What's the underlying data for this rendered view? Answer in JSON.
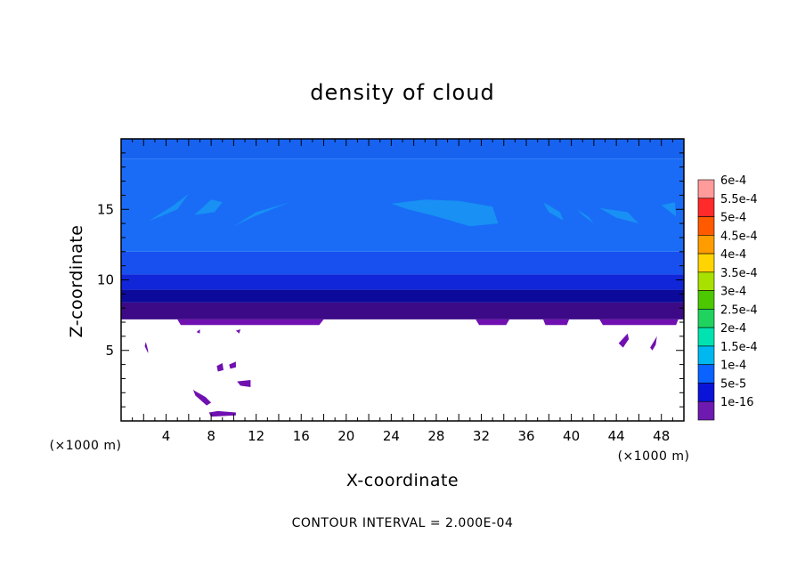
{
  "chart_data": {
    "type": "heatmap",
    "title": "density of cloud",
    "xlabel": "X-coordinate",
    "ylabel": "Z-coordinate",
    "x_unit": "(×1000 m)",
    "z_unit": "(×1000 m)",
    "xlim": [
      0,
      50
    ],
    "ylim": [
      0,
      20
    ],
    "x_ticks": [
      4,
      8,
      12,
      16,
      20,
      24,
      28,
      32,
      36,
      40,
      44,
      48
    ],
    "y_ticks": [
      5,
      10,
      15
    ],
    "footer": "CONTOUR INTERVAL = 2.000E-04",
    "colorbar": {
      "labels": [
        "6e-4",
        "5.5e-4",
        "5e-4",
        "4.5e-4",
        "4e-4",
        "3.5e-4",
        "3e-4",
        "2.5e-4",
        "2e-4",
        "1.5e-4",
        "1e-4",
        "5e-5",
        "1e-16"
      ],
      "colors": [
        "#ff9b9b",
        "#ff2a2a",
        "#ff5a00",
        "#ff9c00",
        "#ffd400",
        "#a8e000",
        "#4cc800",
        "#1fd35e",
        "#00e3b0",
        "#00b8f0",
        "#0a63ff",
        "#0a14d8",
        "#6e1ab0"
      ]
    },
    "bands": [
      {
        "z_bottom": 7.2,
        "z_top": 8.4,
        "color": "#3c0a86"
      },
      {
        "z_bottom": 8.4,
        "z_top": 9.3,
        "color": "#0c0a9a"
      },
      {
        "z_bottom": 9.3,
        "z_top": 10.4,
        "color": "#1026d8"
      },
      {
        "z_bottom": 10.4,
        "z_top": 12.0,
        "color": "#1750ee"
      },
      {
        "z_bottom": 12.0,
        "z_top": 18.6,
        "color": "#1a6cf6"
      },
      {
        "z_bottom": 18.6,
        "z_top": 20.0,
        "color": "#1763ef"
      }
    ],
    "regions": [
      {
        "level": "1.5e-4",
        "color": "#1890f4",
        "polygon": [
          [
            2.5,
            14.2
          ],
          [
            4.5,
            15.2
          ],
          [
            6.0,
            16.1
          ],
          [
            5.0,
            15.0
          ],
          [
            3.5,
            14.5
          ]
        ]
      },
      {
        "level": "1.5e-4",
        "color": "#1890f4",
        "polygon": [
          [
            6.5,
            14.6
          ],
          [
            8.0,
            15.7
          ],
          [
            9.0,
            15.5
          ],
          [
            8.3,
            14.8
          ]
        ]
      },
      {
        "level": "1.5e-4",
        "color": "#1890f4",
        "polygon": [
          [
            10.0,
            13.8
          ],
          [
            12.0,
            14.8
          ],
          [
            15.0,
            15.5
          ],
          [
            14.0,
            15.2
          ],
          [
            11.8,
            14.5
          ]
        ]
      },
      {
        "level": "1.5e-4",
        "color": "#1890f4",
        "polygon": [
          [
            24.0,
            15.4
          ],
          [
            27.0,
            15.7
          ],
          [
            30.0,
            15.6
          ],
          [
            33.0,
            15.2
          ],
          [
            33.5,
            14.0
          ],
          [
            31.0,
            13.8
          ],
          [
            28.0,
            14.5
          ],
          [
            25.5,
            15.0
          ]
        ]
      },
      {
        "level": "1.5e-4",
        "color": "#1890f4",
        "polygon": [
          [
            37.5,
            15.5
          ],
          [
            39.0,
            14.8
          ],
          [
            39.3,
            14.2
          ],
          [
            38.0,
            14.8
          ]
        ]
      },
      {
        "level": "1.5e-4",
        "color": "#1890f4",
        "polygon": [
          [
            40.5,
            15.0
          ],
          [
            41.5,
            14.5
          ],
          [
            42.0,
            14.0
          ],
          [
            41.0,
            14.6
          ]
        ]
      },
      {
        "level": "1.5e-4",
        "color": "#1890f4",
        "polygon": [
          [
            42.5,
            15.1
          ],
          [
            45.0,
            14.8
          ],
          [
            46.0,
            14.0
          ],
          [
            44.0,
            14.4
          ]
        ]
      },
      {
        "level": "1.5e-4",
        "color": "#1890f4",
        "polygon": [
          [
            48.0,
            15.3
          ],
          [
            49.3,
            14.5
          ],
          [
            49.2,
            15.5
          ]
        ]
      },
      {
        "level": "1e-16",
        "color": "#7010b0",
        "polygon": [
          [
            5.0,
            7.2
          ],
          [
            18.0,
            7.2
          ],
          [
            17.6,
            6.8
          ],
          [
            5.3,
            6.8
          ]
        ]
      },
      {
        "level": "1e-16",
        "color": "#7010b0",
        "polygon": [
          [
            31.5,
            7.2
          ],
          [
            34.5,
            7.2
          ],
          [
            34.2,
            6.8
          ],
          [
            31.8,
            6.8
          ]
        ]
      },
      {
        "level": "1e-16",
        "color": "#7010b0",
        "polygon": [
          [
            37.5,
            7.2
          ],
          [
            39.8,
            7.2
          ],
          [
            39.6,
            6.8
          ],
          [
            37.7,
            6.8
          ]
        ]
      },
      {
        "level": "1e-16",
        "color": "#7010b0",
        "polygon": [
          [
            42.5,
            7.2
          ],
          [
            49.5,
            7.2
          ],
          [
            49.3,
            6.8
          ],
          [
            42.8,
            6.8
          ]
        ]
      },
      {
        "level": "1e-16",
        "color": "#7010b0",
        "polygon": [
          [
            2.2,
            5.6
          ],
          [
            2.4,
            5.0
          ],
          [
            2.4,
            4.8
          ],
          [
            2.1,
            5.3
          ]
        ]
      },
      {
        "level": "1e-16",
        "color": "#7010b0",
        "polygon": [
          [
            8.5,
            3.9
          ],
          [
            9.0,
            4.1
          ],
          [
            9.1,
            3.6
          ],
          [
            8.6,
            3.5
          ]
        ]
      },
      {
        "level": "1e-16",
        "color": "#7010b0",
        "polygon": [
          [
            9.6,
            4.0
          ],
          [
            10.2,
            4.2
          ],
          [
            10.2,
            3.8
          ],
          [
            9.7,
            3.7
          ]
        ]
      },
      {
        "level": "1e-16",
        "color": "#7010b0",
        "polygon": [
          [
            10.3,
            2.8
          ],
          [
            11.5,
            2.9
          ],
          [
            11.5,
            2.4
          ],
          [
            10.6,
            2.5
          ]
        ]
      },
      {
        "level": "1e-16",
        "color": "#7010b0",
        "polygon": [
          [
            6.4,
            2.2
          ],
          [
            7.5,
            1.7
          ],
          [
            8.0,
            1.3
          ],
          [
            7.6,
            1.1
          ],
          [
            6.6,
            1.8
          ]
        ]
      },
      {
        "level": "1e-16",
        "color": "#7010b0",
        "polygon": [
          [
            7.8,
            0.6
          ],
          [
            8.6,
            0.7
          ],
          [
            10.2,
            0.6
          ],
          [
            10.2,
            0.4
          ],
          [
            8.0,
            0.3
          ]
        ]
      },
      {
        "level": "1e-16",
        "color": "#7010b0",
        "polygon": [
          [
            44.2,
            5.5
          ],
          [
            45.0,
            6.2
          ],
          [
            45.1,
            5.8
          ],
          [
            44.6,
            5.2
          ]
        ]
      },
      {
        "level": "1e-16",
        "color": "#7010b0",
        "polygon": [
          [
            47.0,
            5.2
          ],
          [
            47.6,
            6.0
          ],
          [
            47.5,
            5.4
          ],
          [
            47.2,
            5.0
          ]
        ]
      },
      {
        "level": "1e-16",
        "color": "#7010b0",
        "polygon": [
          [
            6.7,
            6.3
          ],
          [
            7.0,
            6.5
          ],
          [
            7.0,
            6.2
          ]
        ]
      },
      {
        "level": "1e-16",
        "color": "#7010b0",
        "polygon": [
          [
            10.2,
            6.4
          ],
          [
            10.6,
            6.5
          ],
          [
            10.5,
            6.2
          ]
        ]
      }
    ]
  }
}
